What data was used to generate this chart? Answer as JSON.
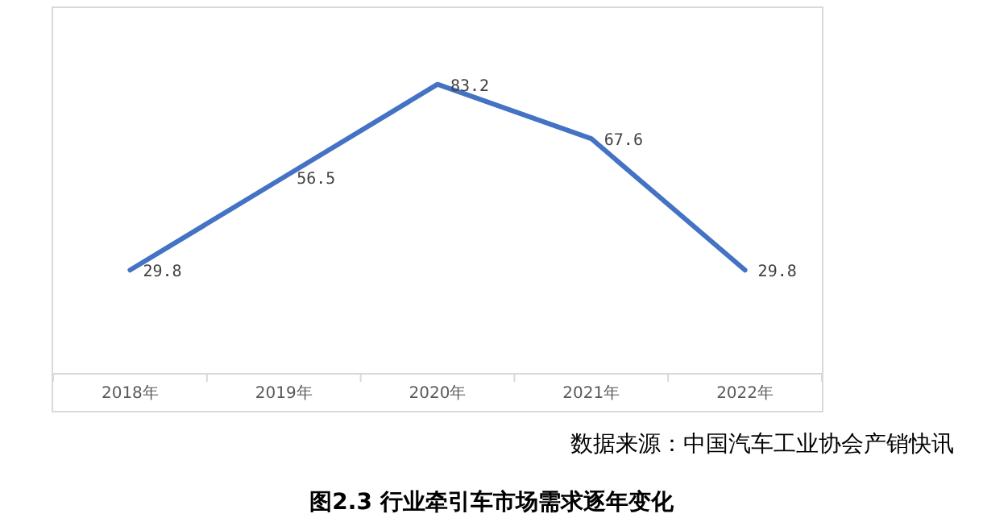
{
  "chart_data": {
    "type": "line",
    "title": "图2.3  行业牵引车市场需求逐年变化",
    "categories": [
      "2018年",
      "2019年",
      "2020年",
      "2021年",
      "2022年"
    ],
    "series": [
      {
        "color": "#4472c4",
        "values": [
          29.8,
          56.5,
          83.2,
          67.6,
          29.8
        ]
      }
    ],
    "data_labels": true,
    "annotations": [
      "数据来源：中国汽车工业协会产销快讯"
    ]
  }
}
